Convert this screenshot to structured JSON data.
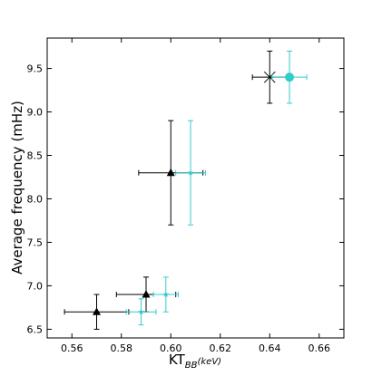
{
  "chart_data": {
    "type": "scatter",
    "xlabel": "KT",
    "xlabel_subscript": "BB",
    "xlabel_suffix": "(keV)",
    "ylabel": "Average frequency (mHz)",
    "xlim": [
      0.55,
      0.67
    ],
    "ylim": [
      6.4,
      9.85
    ],
    "xticks": [
      "0.56",
      "0.58",
      "0.60",
      "0.62",
      "0.64",
      "0.66"
    ],
    "yticks": [
      "6.5",
      "7.0",
      "7.5",
      "8.0",
      "8.5",
      "9.0",
      "9.5"
    ],
    "grid": false,
    "series": [
      {
        "color": "#000000",
        "points": [
          {
            "x": 0.57,
            "y": 6.7,
            "xerr": 0.013,
            "yerr": 0.2,
            "marker": "triangle"
          },
          {
            "x": 0.59,
            "y": 6.9,
            "xerr": 0.012,
            "yerr": 0.2,
            "marker": "triangle"
          },
          {
            "x": 0.6,
            "y": 8.3,
            "xerr": 0.013,
            "yerr": 0.6,
            "marker": "triangle"
          },
          {
            "x": 0.64,
            "y": 9.4,
            "xerr": 0.007,
            "yerr": 0.3,
            "marker": "x"
          }
        ]
      },
      {
        "color": "#33cccc",
        "points": [
          {
            "x": 0.588,
            "y": 6.7,
            "xerr": 0.006,
            "yerr": 0.15,
            "marker": "star"
          },
          {
            "x": 0.598,
            "y": 6.9,
            "xerr": 0.005,
            "yerr": 0.2,
            "marker": "star"
          },
          {
            "x": 0.608,
            "y": 8.3,
            "xerr": 0.006,
            "yerr": 0.6,
            "marker": "star"
          },
          {
            "x": 0.648,
            "y": 9.4,
            "xerr": 0.007,
            "yerr": 0.3,
            "marker": "circle"
          }
        ]
      }
    ]
  }
}
